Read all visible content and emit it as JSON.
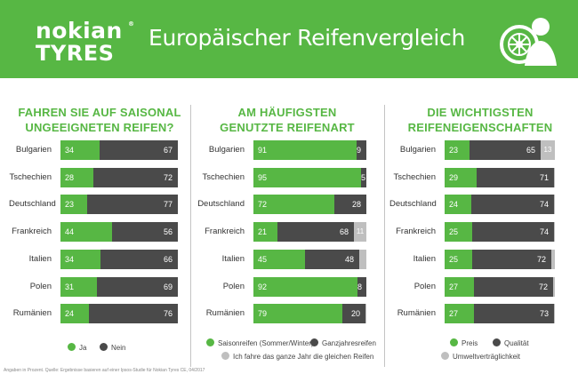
{
  "header": {
    "logo_line1": "nokian",
    "logo_line2": "TYRES",
    "logo_reg": "®",
    "title": "Europäischer Reifenvergleich",
    "icon": "tyre-and-person-icon"
  },
  "colors": {
    "green": "#57b744",
    "dark": "#4a4a4a",
    "light": "#bfbfbf"
  },
  "footnote": "Angaben in Prozent. Quelle: Ergebnisse basieren auf einer Ipsos-Studie für Nokian Tyres CE, 04/2017",
  "chart_data": [
    {
      "type": "bar",
      "orientation": "horizontal",
      "stacked": true,
      "title": "FAHREN SIE AUF SAISONAL UNGEEIGNETEN REIFEN?",
      "title_lines": [
        "FAHREN SIE AUF SAISONAL",
        "UNGEEIGNETEN REIFEN?"
      ],
      "categories": [
        "Bulgarien",
        "Tschechien",
        "Deutschland",
        "Frankreich",
        "Italien",
        "Polen",
        "Rumänien"
      ],
      "series": [
        {
          "name": "Ja",
          "color": "#57b744",
          "values": [
            34,
            28,
            23,
            44,
            34,
            31,
            24
          ]
        },
        {
          "name": "Nein",
          "color": "#4a4a4a",
          "values": [
            67,
            72,
            77,
            56,
            66,
            69,
            76
          ]
        }
      ],
      "legend": [
        "Ja",
        "Nein"
      ]
    },
    {
      "type": "bar",
      "orientation": "horizontal",
      "stacked": true,
      "title": "AM HÄUFIGSTEN GENUTZTE REIFENART",
      "title_lines": [
        "AM HÄUFIGSTEN",
        "GENUTZTE REIFENART"
      ],
      "categories": [
        "Bulgarien",
        "Tschechien",
        "Deutschland",
        "Frankreich",
        "Italien",
        "Polen",
        "Rumänien"
      ],
      "series": [
        {
          "name": "Saisonreifen (Sommer/Winter)",
          "color": "#57b744",
          "values": [
            91,
            95,
            72,
            21,
            45,
            92,
            79
          ]
        },
        {
          "name": "Ganzjahresreifen",
          "color": "#4a4a4a",
          "values": [
            9,
            5,
            28,
            68,
            48,
            8,
            20
          ]
        },
        {
          "name": "Ich fahre das ganze Jahr die gleichen Reifen",
          "color": "#bfbfbf",
          "values": [
            0,
            0,
            0,
            11,
            6,
            0,
            1
          ]
        }
      ],
      "legend": [
        "Saisonreifen (Sommer/Winter)",
        "Ganzjahresreifen",
        "Ich fahre das ganze Jahr die gleichen Reifen"
      ]
    },
    {
      "type": "bar",
      "orientation": "horizontal",
      "stacked": true,
      "title": "DIE WICHTIGSTEN REIFENEIGENSCHAFTEN",
      "title_lines": [
        "DIE WICHTIGSTEN",
        "REIFENEIGENSCHAFTEN"
      ],
      "categories": [
        "Bulgarien",
        "Tschechien",
        "Deutschland",
        "Frankreich",
        "Italien",
        "Polen",
        "Rumänien"
      ],
      "series": [
        {
          "name": "Preis",
          "color": "#57b744",
          "values": [
            23,
            29,
            24,
            25,
            25,
            27,
            27
          ]
        },
        {
          "name": "Qualität",
          "color": "#4a4a4a",
          "values": [
            65,
            71,
            74,
            74,
            72,
            72,
            73
          ]
        },
        {
          "name": "Umweltverträglichkeit",
          "color": "#bfbfbf",
          "values": [
            13,
            1,
            1,
            1,
            3,
            2,
            1
          ]
        }
      ],
      "legend": [
        "Preis",
        "Qualität",
        "Umweltverträglichkeit"
      ]
    }
  ]
}
